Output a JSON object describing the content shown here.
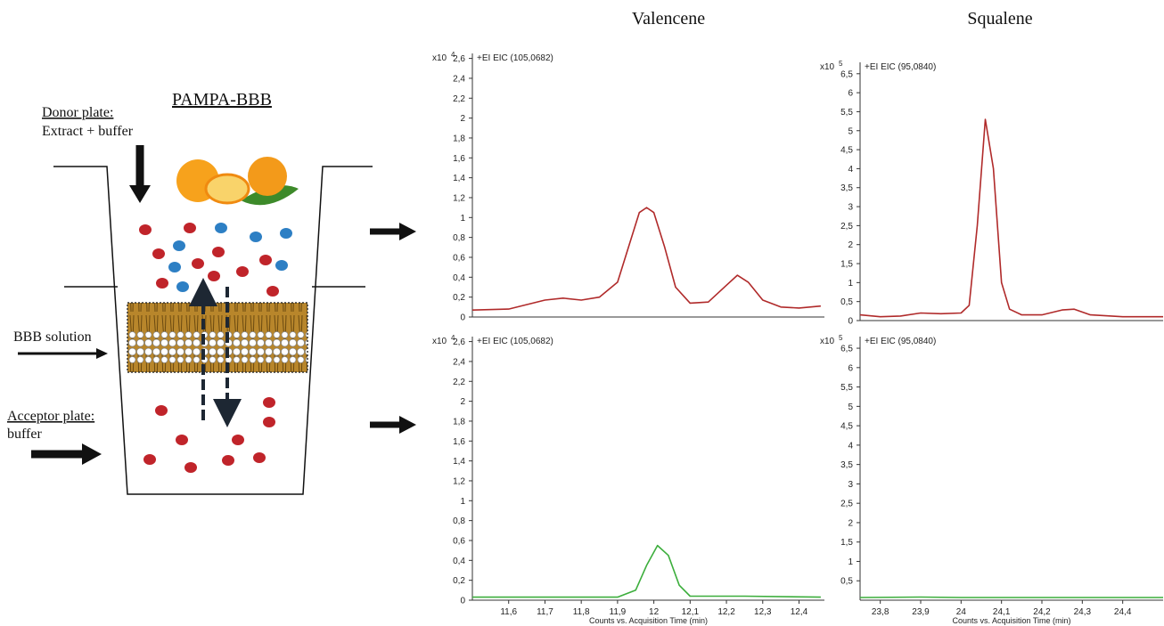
{
  "diagram": {
    "title": "PAMPA-BBB",
    "donor_label": "Donor plate:",
    "donor_text": "Extract + buffer",
    "membrane_label": "BBB solution",
    "acceptor_label": "Acceptor plate:",
    "acceptor_text": "buffer"
  },
  "column_titles": [
    "Valencene",
    "Squalene"
  ],
  "chart_data": [
    {
      "type": "line",
      "title": "+EI EIC (105,0682)",
      "y_scale": "x10",
      "y_exponent": "4",
      "color": "#b02a2a",
      "x": [
        11.5,
        11.6,
        11.7,
        11.75,
        11.8,
        11.85,
        11.9,
        11.93,
        11.96,
        11.98,
        12.0,
        12.03,
        12.06,
        12.1,
        12.15,
        12.2,
        12.23,
        12.26,
        12.3,
        12.35,
        12.4,
        12.46
      ],
      "values": [
        0.07,
        0.08,
        0.17,
        0.19,
        0.17,
        0.2,
        0.35,
        0.7,
        1.05,
        1.1,
        1.05,
        0.7,
        0.3,
        0.14,
        0.15,
        0.32,
        0.42,
        0.35,
        0.17,
        0.1,
        0.09,
        0.11
      ],
      "xlim": [
        11.5,
        12.47
      ],
      "ylim": [
        0,
        2.65
      ],
      "yticks": [
        0,
        {
          "value": 0.2,
          "label": "0,2"
        },
        {
          "value": 0.4,
          "label": "0,4"
        },
        {
          "value": 0.6,
          "label": "0,6"
        },
        {
          "value": 0.8,
          "label": "0,8"
        },
        1,
        {
          "value": 1.2,
          "label": "1,2"
        },
        {
          "value": 1.4,
          "label": "1,4"
        },
        {
          "value": 1.6,
          "label": "1,6"
        },
        {
          "value": 1.8,
          "label": "1,8"
        },
        2,
        {
          "value": 2.2,
          "label": "2,2"
        },
        {
          "value": 2.4,
          "label": "2,4"
        },
        {
          "value": 2.6,
          "label": "2,6"
        }
      ]
    },
    {
      "type": "line",
      "title": "+EI EIC (105,0682)",
      "y_scale": "x10",
      "y_exponent": "4",
      "color": "#3cae3c",
      "x_label": "Counts vs. Acquisition Time (min)",
      "x": [
        11.5,
        11.8,
        11.9,
        11.95,
        11.98,
        12.01,
        12.04,
        12.07,
        12.1,
        12.25,
        12.46
      ],
      "values": [
        0.03,
        0.03,
        0.03,
        0.1,
        0.35,
        0.55,
        0.45,
        0.15,
        0.04,
        0.04,
        0.03
      ],
      "xlim": [
        11.5,
        12.47
      ],
      "ylim": [
        0,
        2.65
      ],
      "xticks": [
        {
          "value": 11.6,
          "label": "11,6"
        },
        {
          "value": 11.7,
          "label": "11,7"
        },
        {
          "value": 11.8,
          "label": "11,8"
        },
        {
          "value": 11.9,
          "label": "11,9"
        },
        12,
        {
          "value": 12.1,
          "label": "12,1"
        },
        {
          "value": 12.2,
          "label": "12,2"
        },
        {
          "value": 12.3,
          "label": "12,3"
        },
        {
          "value": 12.4,
          "label": "12,4"
        }
      ],
      "yticks": [
        0,
        {
          "value": 0.2,
          "label": "0,2"
        },
        {
          "value": 0.4,
          "label": "0,4"
        },
        {
          "value": 0.6,
          "label": "0,6"
        },
        {
          "value": 0.8,
          "label": "0,8"
        },
        1,
        {
          "value": 1.2,
          "label": "1,2"
        },
        {
          "value": 1.4,
          "label": "1,4"
        },
        {
          "value": 1.6,
          "label": "1,6"
        },
        {
          "value": 1.8,
          "label": "1,8"
        },
        2,
        {
          "value": 2.2,
          "label": "2,2"
        },
        {
          "value": 2.4,
          "label": "2,4"
        },
        {
          "value": 2.6,
          "label": "2,6"
        }
      ]
    },
    {
      "type": "line",
      "title": "+EI EIC (95,0840)",
      "y_scale": "x10",
      "y_exponent": "5",
      "color": "#b02a2a",
      "x": [
        23.75,
        23.8,
        23.85,
        23.9,
        23.95,
        24.0,
        24.02,
        24.04,
        24.06,
        24.08,
        24.1,
        24.12,
        24.15,
        24.2,
        24.25,
        24.28,
        24.32,
        24.4,
        24.5
      ],
      "values": [
        0.15,
        0.1,
        0.12,
        0.2,
        0.18,
        0.2,
        0.4,
        2.5,
        5.3,
        4,
        1,
        0.3,
        0.15,
        0.15,
        0.28,
        0.3,
        0.15,
        0.1,
        0.1
      ],
      "xlim": [
        23.75,
        24.5
      ],
      "ylim": [
        0,
        6.8
      ],
      "yticks": [
        0,
        {
          "value": 0.5,
          "label": "0,5"
        },
        1,
        {
          "value": 1.5,
          "label": "1,5"
        },
        2,
        {
          "value": 2.5,
          "label": "2,5"
        },
        3,
        {
          "value": 3.5,
          "label": "3,5"
        },
        4,
        {
          "value": 4.5,
          "label": "4,5"
        },
        5,
        {
          "value": 5.5,
          "label": "5,5"
        },
        6,
        {
          "value": 6.5,
          "label": "6,5"
        }
      ]
    },
    {
      "type": "line",
      "title": "+EI EIC (95,0840)",
      "y_scale": "x10",
      "y_exponent": "5",
      "color": "#3cae3c",
      "x_label": "Counts vs. Acquisition Time (min)",
      "x": [
        23.75,
        23.9,
        24.0,
        24.2,
        24.5
      ],
      "values": [
        0.07,
        0.08,
        0.07,
        0.07,
        0.07
      ],
      "xlim": [
        23.75,
        24.5
      ],
      "ylim": [
        0,
        6.8
      ],
      "xticks": [
        {
          "value": 23.8,
          "label": "23,8"
        },
        {
          "value": 23.9,
          "label": "23,9"
        },
        24,
        {
          "value": 24.1,
          "label": "24,1"
        },
        {
          "value": 24.2,
          "label": "24,2"
        },
        {
          "value": 24.3,
          "label": "24,3"
        },
        {
          "value": 24.4,
          "label": "24,4"
        }
      ],
      "yticks": [
        {
          "value": 0.5,
          "label": "0,5"
        },
        1,
        {
          "value": 1.5,
          "label": "1,5"
        },
        2,
        {
          "value": 2.5,
          "label": "2,5"
        },
        3,
        {
          "value": 3.5,
          "label": "3,5"
        },
        4,
        {
          "value": 4.5,
          "label": "4,5"
        },
        5,
        {
          "value": 5.5,
          "label": "5,5"
        },
        6,
        {
          "value": 6.5,
          "label": "6,5"
        }
      ]
    }
  ]
}
